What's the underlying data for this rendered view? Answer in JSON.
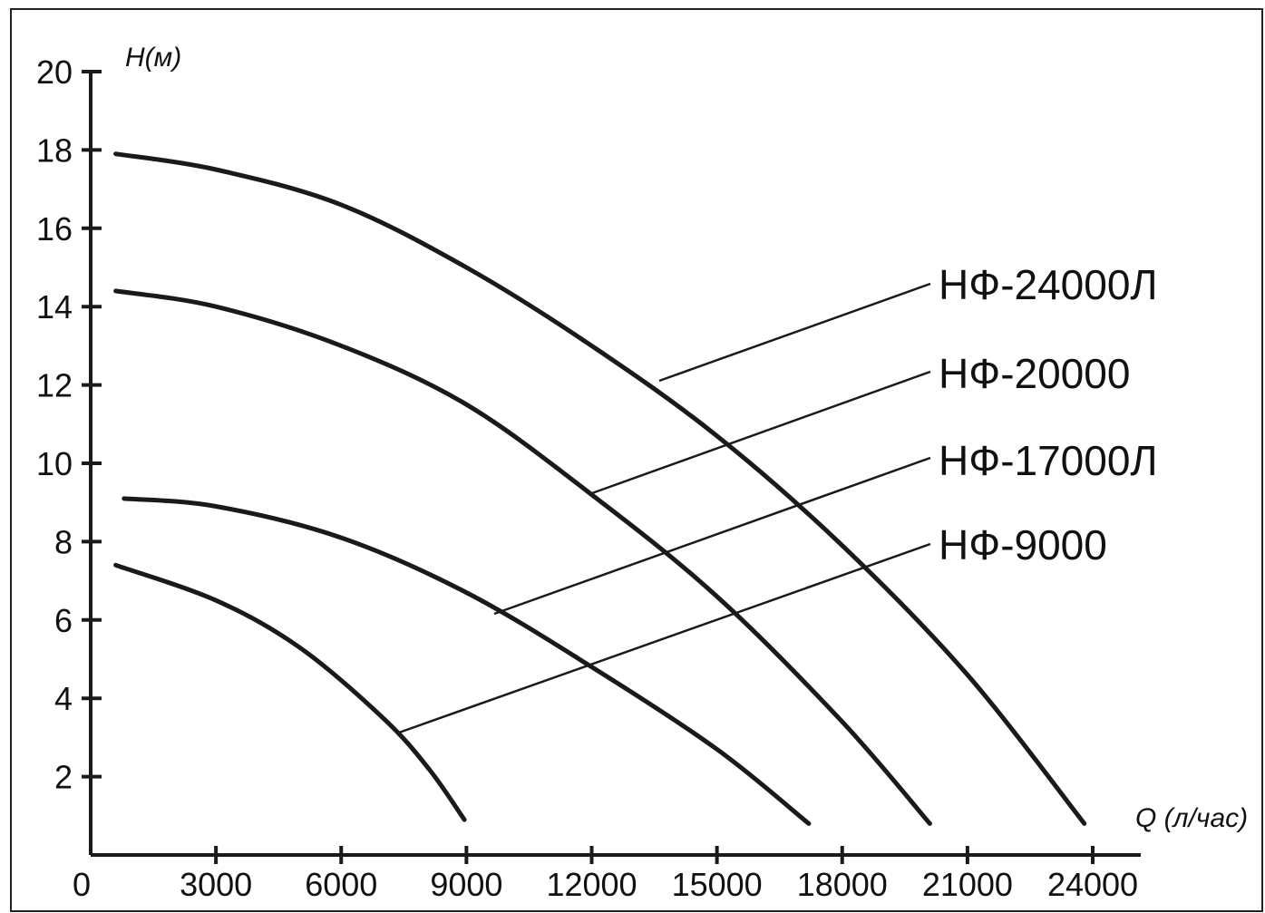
{
  "chart_data": {
    "type": "line",
    "xlabel": "Q (л/час)",
    "ylabel": "H(м)",
    "xlim": [
      0,
      24000
    ],
    "ylim": [
      0,
      20
    ],
    "x_origin_label": "0",
    "x_ticks": [
      3000,
      6000,
      9000,
      12000,
      15000,
      18000,
      21000,
      24000
    ],
    "y_ticks": [
      2,
      4,
      6,
      8,
      10,
      12,
      14,
      16,
      18,
      20
    ],
    "grid": false,
    "legend": "right (leader-line labels)",
    "series": [
      {
        "name": "НФ-24000Л",
        "x": [
          600,
          3000,
          6000,
          9000,
          12000,
          15000,
          18000,
          21000,
          23800
        ],
        "y": [
          17.9,
          17.5,
          16.6,
          15.0,
          13.0,
          10.7,
          7.9,
          4.6,
          0.8
        ]
      },
      {
        "name": "НФ-20000",
        "x": [
          600,
          3000,
          6000,
          9000,
          12000,
          15000,
          18000,
          20100
        ],
        "y": [
          14.4,
          14.0,
          13.0,
          11.5,
          9.2,
          6.6,
          3.4,
          0.8
        ]
      },
      {
        "name": "НФ-17000Л",
        "x": [
          800,
          3000,
          6000,
          9000,
          12000,
          15000,
          17200
        ],
        "y": [
          9.1,
          8.9,
          8.1,
          6.7,
          4.8,
          2.7,
          0.8
        ]
      },
      {
        "name": "НФ-9000",
        "x": [
          600,
          3000,
          5000,
          7000,
          8100,
          8950
        ],
        "y": [
          7.4,
          6.5,
          5.3,
          3.5,
          2.2,
          0.9
        ]
      }
    ]
  }
}
